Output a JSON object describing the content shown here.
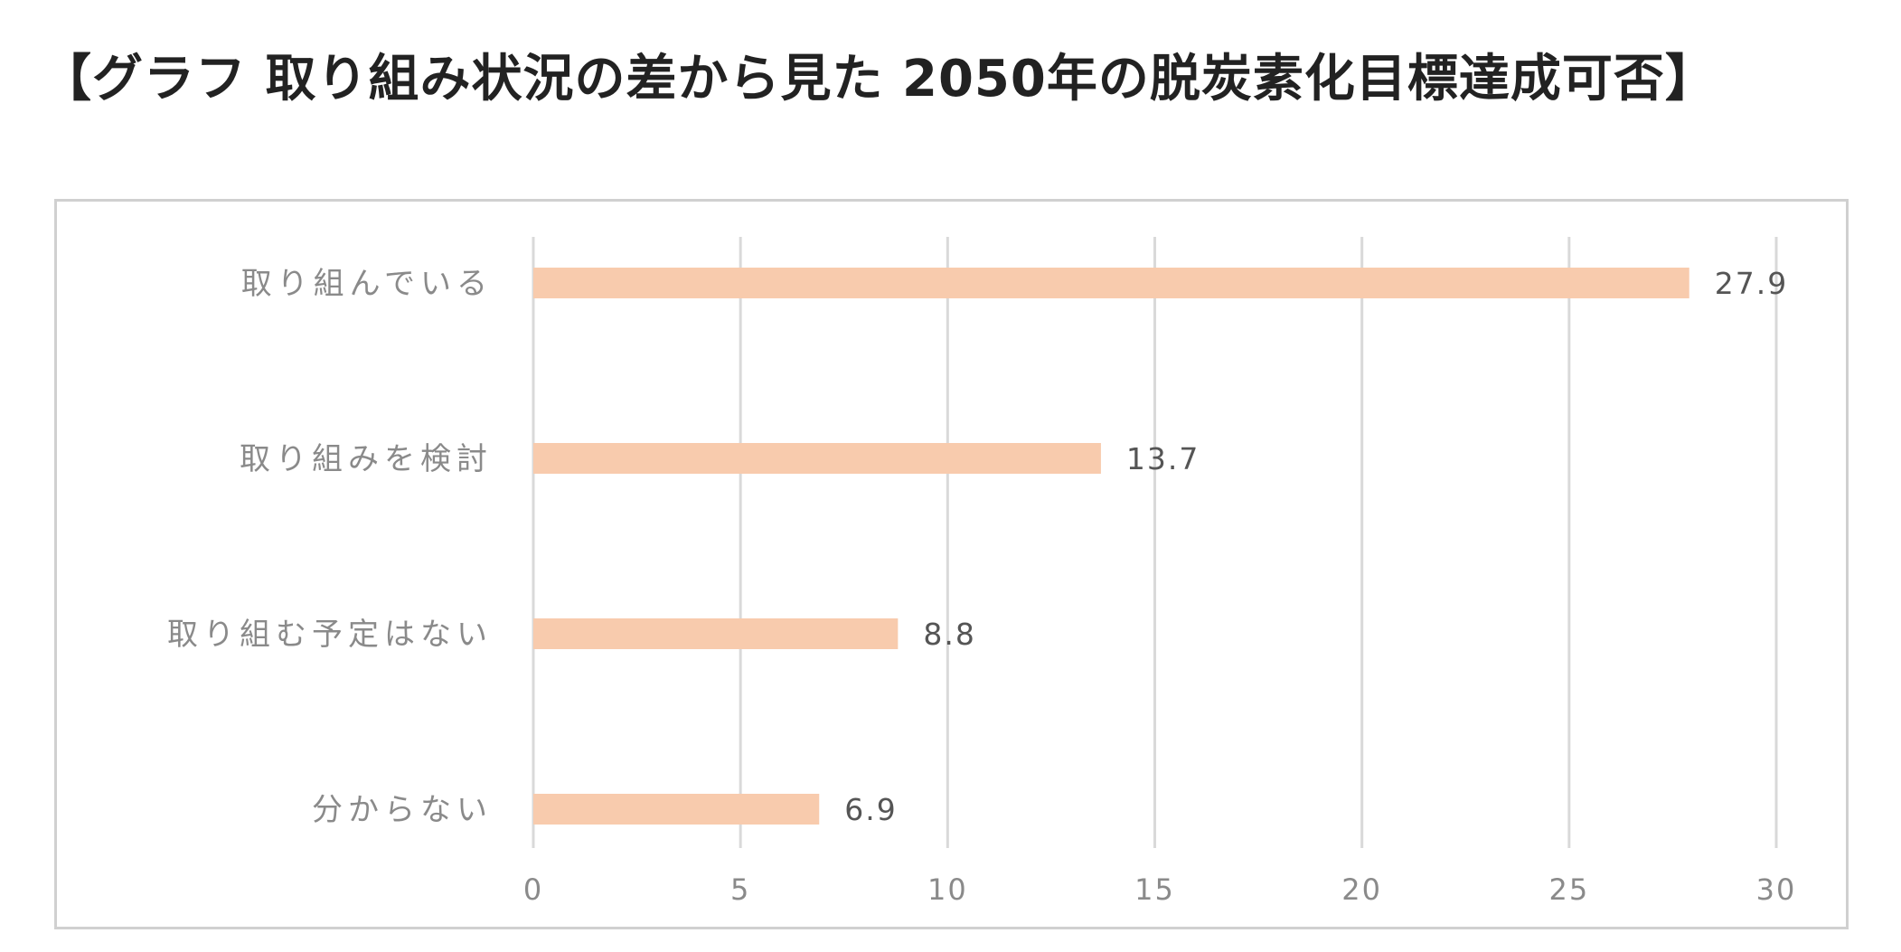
{
  "title": "【グラフ 取り組み状況の差から見た 2050年の脱炭素化目標達成可否】",
  "colors": {
    "bar": "#f8cbad",
    "grid": "#d9d9d9",
    "frame": "#d0d0d0"
  },
  "chart_data": {
    "type": "bar",
    "orientation": "horizontal",
    "categories": [
      "取り組んでいる",
      "取り組みを検討",
      "取り組む予定はない",
      "分からない"
    ],
    "values": [
      27.9,
      13.7,
      8.8,
      6.9
    ],
    "data_labels": [
      "27.9",
      "13.7",
      "8.8",
      "6.9"
    ],
    "xlim": [
      0,
      30
    ],
    "x_ticks": [
      0,
      5,
      10,
      15,
      20,
      25,
      30
    ],
    "grid": true,
    "legend": "none"
  }
}
